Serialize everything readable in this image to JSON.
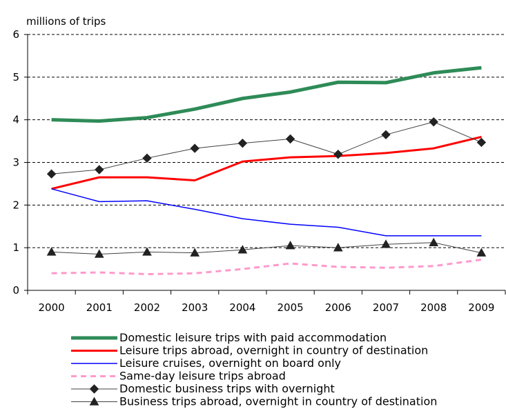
{
  "chart_data": {
    "type": "line",
    "title": "",
    "ylabel": "millions of trips",
    "xlabel": "",
    "ylim": [
      0,
      6
    ],
    "yticks": [
      0,
      1,
      2,
      3,
      4,
      5,
      6
    ],
    "grid": "horizontal dashed",
    "legend_position": "bottom",
    "categories": [
      "2000",
      "2001",
      "2002",
      "2003",
      "2004",
      "2005",
      "2006",
      "2007",
      "2008",
      "2009"
    ],
    "series": [
      {
        "name": "Domestic leisure trips with paid accommodation",
        "color": "#2e8b57",
        "style": "thick",
        "values": [
          4.0,
          3.97,
          4.05,
          4.25,
          4.5,
          4.65,
          4.88,
          4.87,
          5.1,
          5.22
        ]
      },
      {
        "name": "Leisure trips abroad, overnight in country of destination",
        "color": "#ff0000",
        "style": "medium",
        "values": [
          2.38,
          2.65,
          2.65,
          2.58,
          3.02,
          3.12,
          3.15,
          3.22,
          3.33,
          3.6
        ]
      },
      {
        "name": "Leisure cruises, overnight on board only",
        "color": "#0000ff",
        "style": "thin",
        "values": [
          2.38,
          2.08,
          2.1,
          1.9,
          1.68,
          1.55,
          1.48,
          1.28,
          1.28,
          1.28
        ]
      },
      {
        "name": "Same-day leisure trips abroad",
        "color": "#ff99cc",
        "style": "dashed",
        "values": [
          0.4,
          0.42,
          0.38,
          0.4,
          0.5,
          0.63,
          0.55,
          0.53,
          0.57,
          0.72
        ]
      },
      {
        "name": "Domestic business trips with overnight",
        "color": "#404040",
        "style": "diamond",
        "values": [
          2.73,
          2.83,
          3.1,
          3.33,
          3.45,
          3.55,
          3.19,
          3.65,
          3.95,
          3.47
        ]
      },
      {
        "name": "Business trips abroad, overnight in country of destination",
        "color": "#404040",
        "style": "triangle",
        "values": [
          0.9,
          0.85,
          0.9,
          0.88,
          0.95,
          1.05,
          1.0,
          1.08,
          1.12,
          0.88
        ]
      }
    ]
  }
}
